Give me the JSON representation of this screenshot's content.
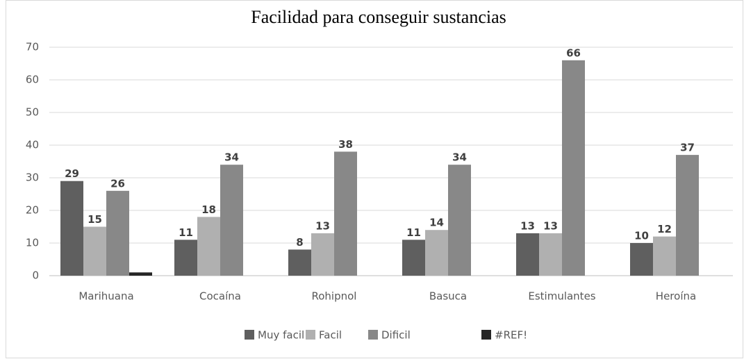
{
  "chart_data": {
    "type": "bar",
    "title": "Facilidad para conseguir sustancias",
    "categories": [
      "Marihuana",
      "Cocaína",
      "Rohipnol",
      "Basuca",
      "Estimulantes",
      "Heroína"
    ],
    "series": [
      {
        "name": "Muy facil",
        "color": "#5f5f5f",
        "values": [
          29,
          11,
          8,
          11,
          13,
          10
        ]
      },
      {
        "name": "Facil",
        "color": "#b0b0b0",
        "values": [
          15,
          18,
          13,
          14,
          13,
          12
        ]
      },
      {
        "name": "Dificil",
        "color": "#888888",
        "values": [
          26,
          34,
          38,
          34,
          66,
          37
        ]
      },
      {
        "name": "#REF!",
        "color": "#262626",
        "values": [
          1,
          null,
          null,
          null,
          null,
          null
        ]
      }
    ],
    "ylim": [
      0,
      70
    ],
    "yticks": [
      0,
      10,
      20,
      30,
      40,
      50,
      60,
      70
    ],
    "grid": true,
    "legend": "bottom"
  }
}
